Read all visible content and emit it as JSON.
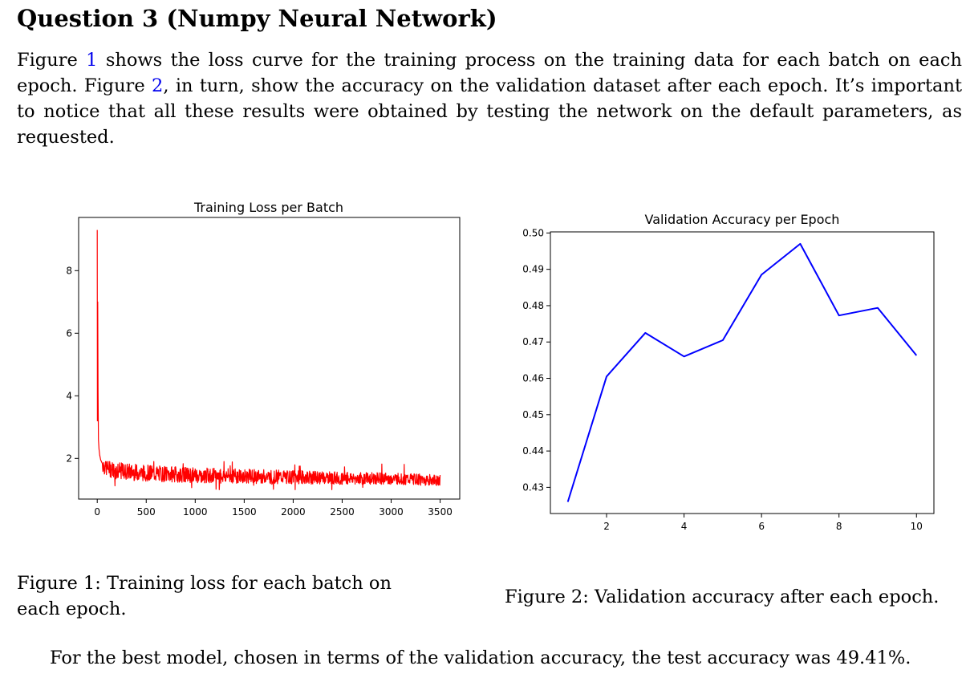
{
  "section": {
    "title": "Question 3 (Numpy Neural Network)"
  },
  "intro": {
    "p1": "Figure ",
    "ref1": "1",
    "p2": " shows the loss curve for the training process on the training data for each batch on each epoch. Figure ",
    "ref2": "2",
    "p3": ", in turn, show the accuracy on the validation dataset after each epoch. It’s important to notice that all these results were obtained by testing the network on the default parameters, as requested."
  },
  "figure1": {
    "caption": "Figure 1: Training loss for each batch on each epoch."
  },
  "figure2": {
    "caption": "Figure 2: Validation accuracy after each epoch."
  },
  "conclusion": "For the best model, chosen in terms of the validation accuracy, the test accuracy was 49.41%.",
  "chart_data": [
    {
      "type": "line",
      "title": "Training Loss per Batch",
      "xlabel": "",
      "ylabel": "",
      "xlim": [
        -190,
        3700
      ],
      "ylim": [
        0.7,
        9.7
      ],
      "xticks": [
        0,
        500,
        1000,
        1500,
        2000,
        2500,
        3000,
        3500
      ],
      "xtick_labels": [
        "0",
        "500",
        "1000",
        "1500",
        "2000",
        "2500",
        "3000",
        "3500"
      ],
      "yticks": [
        2,
        4,
        6,
        8
      ],
      "ytick_labels": [
        "2",
        "4",
        "6",
        "8"
      ],
      "color": "#ff0000",
      "grid": false,
      "series": [
        {
          "x": [
            0,
            2,
            5,
            8,
            12,
            18,
            25,
            35,
            50,
            70,
            100,
            150,
            200,
            300,
            400,
            500,
            700,
            1000,
            1500,
            2000,
            2500,
            3000,
            3500
          ],
          "y": [
            9.3,
            3.2,
            7.0,
            4.2,
            2.6,
            2.3,
            2.1,
            1.95,
            1.85,
            1.75,
            1.7,
            1.65,
            1.6,
            1.58,
            1.55,
            1.53,
            1.5,
            1.46,
            1.43,
            1.4,
            1.37,
            1.35,
            1.3
          ],
          "noise": {
            "spread": [
              0.55,
              0.35
            ],
            "band": [
              1.0,
              1.9
            ]
          }
        }
      ]
    },
    {
      "type": "line",
      "title": "Validation Accuracy per Epoch",
      "xlabel": "",
      "ylabel": "",
      "xlim": [
        0.55,
        10.45
      ],
      "ylim": [
        0.4228,
        0.5003
      ],
      "xticks": [
        2,
        4,
        6,
        8,
        10
      ],
      "xtick_labels": [
        "2",
        "4",
        "6",
        "8",
        "10"
      ],
      "yticks": [
        0.43,
        0.44,
        0.45,
        0.46,
        0.47,
        0.48,
        0.49,
        0.5
      ],
      "ytick_labels": [
        "0.43",
        "0.44",
        "0.45",
        "0.46",
        "0.47",
        "0.48",
        "0.49",
        "0.50"
      ],
      "color": "#0000ff",
      "grid": false,
      "series": [
        {
          "x": [
            1,
            2,
            3,
            4,
            5,
            6,
            7,
            8,
            9,
            10
          ],
          "y": [
            0.426,
            0.4605,
            0.4725,
            0.466,
            0.4705,
            0.4885,
            0.497,
            0.4773,
            0.4794,
            0.4663
          ]
        }
      ]
    }
  ]
}
